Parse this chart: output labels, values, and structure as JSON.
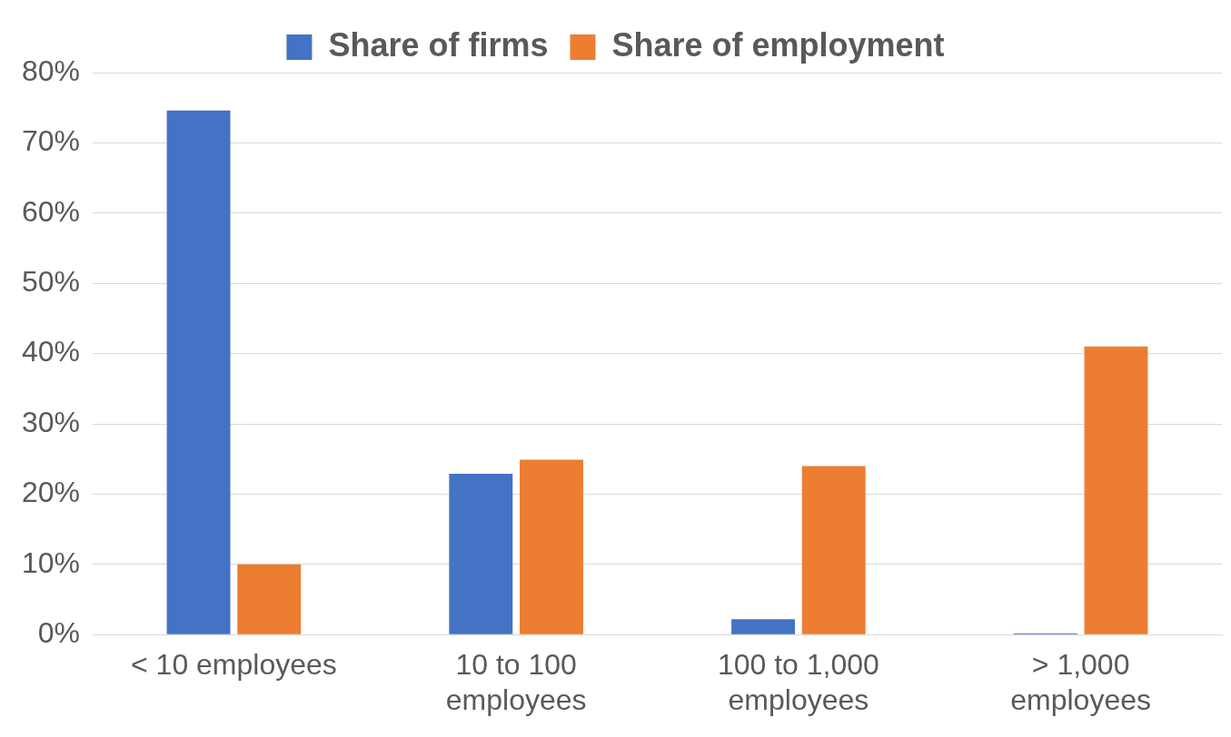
{
  "chart_data": {
    "type": "bar",
    "categories": [
      "< 10 employees",
      "10 to 100 employees",
      "100 to 1,000 employees",
      "> 1,000 employees"
    ],
    "series": [
      {
        "name": "Share of firms",
        "color": "#4472c4",
        "values": [
          74.6,
          22.9,
          2.2,
          0.2
        ]
      },
      {
        "name": "Share of employment",
        "color": "#ed7d31",
        "values": [
          10,
          24.9,
          24,
          41
        ]
      }
    ],
    "ylim": [
      0,
      80
    ],
    "yticks": [
      {
        "value": 0,
        "label": "0%"
      },
      {
        "value": 10,
        "label": "10%"
      },
      {
        "value": 20,
        "label": "20%"
      },
      {
        "value": 30,
        "label": "30%"
      },
      {
        "value": 40,
        "label": "40%"
      },
      {
        "value": 50,
        "label": "50%"
      },
      {
        "value": 60,
        "label": "60%"
      },
      {
        "value": 70,
        "label": "70%"
      },
      {
        "value": 80,
        "label": "80%"
      }
    ],
    "grid": "y",
    "legend": "top"
  }
}
